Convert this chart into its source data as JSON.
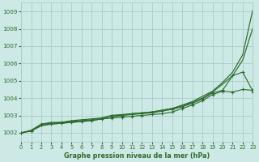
{
  "xlabel": "Graphe pression niveau de la mer (hPa)",
  "ylim": [
    1001.5,
    1009.5
  ],
  "xlim": [
    0,
    23
  ],
  "yticks": [
    1002,
    1003,
    1004,
    1005,
    1006,
    1007,
    1008,
    1009
  ],
  "xticks": [
    0,
    1,
    2,
    3,
    4,
    5,
    6,
    7,
    8,
    9,
    10,
    11,
    12,
    13,
    14,
    15,
    16,
    17,
    18,
    19,
    20,
    21,
    22,
    23
  ],
  "background_color": "#cce9e5",
  "grid_color": "#aaccca",
  "line_color": "#2d6b2d",
  "figsize": [
    3.2,
    2.0
  ],
  "dpi": 100,
  "line1": [
    1002.0,
    1002.1,
    1002.5,
    1002.6,
    1002.6,
    1002.7,
    1002.75,
    1002.8,
    1002.85,
    1003.0,
    1003.05,
    1003.1,
    1003.15,
    1003.2,
    1003.3,
    1003.4,
    1003.6,
    1003.8,
    1004.1,
    1004.4,
    1004.9,
    1005.5,
    1006.5,
    1009.1
  ],
  "line2": [
    1002.0,
    1002.1,
    1002.4,
    1002.5,
    1002.55,
    1002.6,
    1002.65,
    1002.7,
    1002.8,
    1002.9,
    1003.0,
    1003.1,
    1003.15,
    1003.2,
    1003.3,
    1003.4,
    1003.55,
    1003.75,
    1004.0,
    1004.35,
    1004.8,
    1005.3,
    1006.2,
    1008.05
  ],
  "line3_x": [
    0,
    1,
    2,
    3,
    4,
    5,
    6,
    7,
    8,
    9,
    10,
    11,
    12,
    13,
    14,
    15,
    16,
    17,
    18,
    19,
    20,
    21,
    22,
    23
  ],
  "line3": [
    1002.0,
    1002.15,
    1002.5,
    1002.55,
    1002.6,
    1002.65,
    1002.7,
    1002.75,
    1002.85,
    1003.0,
    1003.0,
    1003.05,
    1003.1,
    1003.15,
    1003.25,
    1003.35,
    1003.5,
    1003.7,
    1003.95,
    1004.3,
    1004.45,
    1005.3,
    1005.5,
    1004.4
  ],
  "line4": [
    1002.0,
    1002.1,
    1002.45,
    1002.5,
    1002.55,
    1002.6,
    1002.65,
    1002.7,
    1002.8,
    1002.85,
    1002.9,
    1002.95,
    1003.0,
    1003.05,
    1003.1,
    1003.2,
    1003.4,
    1003.6,
    1003.85,
    1004.2,
    1004.4,
    1004.35,
    1004.5,
    1004.45
  ]
}
